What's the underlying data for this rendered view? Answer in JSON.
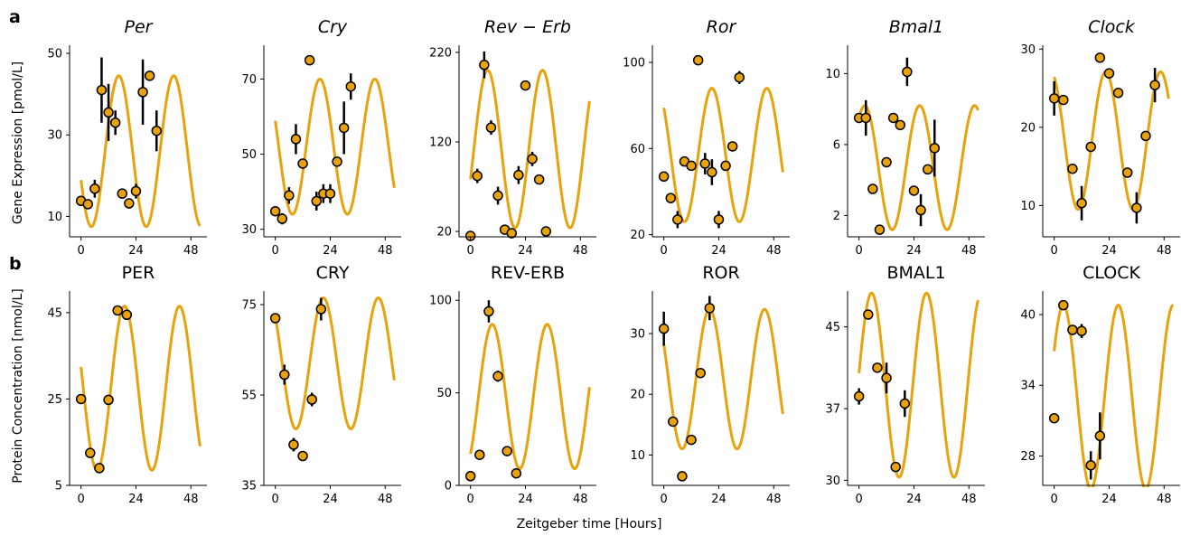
{
  "panel_labels": [
    "a",
    "b"
  ],
  "figure_xlabel": "Zeitgeber time [Hours]",
  "row_ylabels": [
    "Gene Expression [pmol/L]",
    "Protein Concentration [nmol/L]"
  ],
  "colors": {
    "model": "#E8A20C",
    "marker_face": "#E8A20C",
    "marker_edge": "#000000",
    "errorbar": "#000000",
    "axis": "#000000"
  },
  "chart_data": [
    {
      "type": "line",
      "row": 0,
      "title": "Per",
      "italic": true,
      "xlim": [
        -5,
        55
      ],
      "ylim": [
        5,
        52
      ],
      "xticks": [
        0,
        24,
        48
      ],
      "yticks": [
        10,
        30,
        50
      ],
      "model": {
        "x_max": 52,
        "mean": 26,
        "amp": 18.5,
        "phase": 16.5
      },
      "points": [
        {
          "x": 0,
          "y": 13.8,
          "err": 0
        },
        {
          "x": 3,
          "y": 13.0,
          "err": 0
        },
        {
          "x": 6,
          "y": 16.8,
          "err": 2.2
        },
        {
          "x": 9,
          "y": 41.0,
          "err": 8
        },
        {
          "x": 12,
          "y": 35.5,
          "err": 7
        },
        {
          "x": 15,
          "y": 33.0,
          "err": 3
        },
        {
          "x": 18,
          "y": 15.6,
          "err": 0
        },
        {
          "x": 21,
          "y": 13.2,
          "err": 0
        },
        {
          "x": 24,
          "y": 16.2,
          "err": 1.8
        },
        {
          "x": 27,
          "y": 40.5,
          "err": 8
        },
        {
          "x": 30,
          "y": 44.5,
          "err": 0
        },
        {
          "x": 33,
          "y": 31.0,
          "err": 5
        }
      ]
    },
    {
      "type": "line",
      "row": 0,
      "title": "Cry",
      "italic": true,
      "xlim": [
        -5,
        55
      ],
      "ylim": [
        28,
        79
      ],
      "xticks": [
        0,
        24,
        48
      ],
      "yticks": [
        30,
        50,
        70
      ],
      "model": {
        "x_max": 52,
        "mean": 52,
        "amp": 18,
        "phase": 19.5
      },
      "points": [
        {
          "x": 0,
          "y": 34.8,
          "err": 0
        },
        {
          "x": 3,
          "y": 32.8,
          "err": 1.5
        },
        {
          "x": 6,
          "y": 39.0,
          "err": 2.2
        },
        {
          "x": 9,
          "y": 54.0,
          "err": 4
        },
        {
          "x": 12,
          "y": 47.5,
          "err": 0
        },
        {
          "x": 15,
          "y": 75.0,
          "err": 0
        },
        {
          "x": 18,
          "y": 37.5,
          "err": 2.5
        },
        {
          "x": 21,
          "y": 39.5,
          "err": 2.5
        },
        {
          "x": 24,
          "y": 39.5,
          "err": 2.5
        },
        {
          "x": 27,
          "y": 48.0,
          "err": 0
        },
        {
          "x": 30,
          "y": 57.0,
          "err": 7
        },
        {
          "x": 33,
          "y": 68.0,
          "err": 3.5
        }
      ]
    },
    {
      "type": "line",
      "row": 0,
      "title": "Rev − Erb",
      "italic": true,
      "xlim": [
        -5,
        55
      ],
      "ylim": [
        14,
        228
      ],
      "xticks": [
        0,
        24,
        48
      ],
      "yticks": [
        20,
        120,
        220
      ],
      "model": {
        "x_max": 52,
        "mean": 112,
        "amp": 88,
        "phase": 7.5
      },
      "points": [
        {
          "x": 0,
          "y": 15,
          "err": 0
        },
        {
          "x": 3,
          "y": 82,
          "err": 8
        },
        {
          "x": 6,
          "y": 206,
          "err": 15
        },
        {
          "x": 9,
          "y": 136,
          "err": 8
        },
        {
          "x": 12,
          "y": 60,
          "err": 10
        },
        {
          "x": 15,
          "y": 22,
          "err": 0
        },
        {
          "x": 18,
          "y": 18,
          "err": 0
        },
        {
          "x": 21,
          "y": 83,
          "err": 10
        },
        {
          "x": 24,
          "y": 183,
          "err": 0
        },
        {
          "x": 27,
          "y": 101,
          "err": 8
        },
        {
          "x": 30,
          "y": 78,
          "err": 0
        },
        {
          "x": 33,
          "y": 20,
          "err": 0
        }
      ]
    },
    {
      "type": "line",
      "row": 0,
      "title": "Ror",
      "italic": true,
      "xlim": [
        -5,
        55
      ],
      "ylim": [
        19,
        108
      ],
      "xticks": [
        0,
        24,
        48
      ],
      "yticks": [
        20,
        60,
        100
      ],
      "model": {
        "x_max": 52,
        "mean": 57,
        "amp": 31,
        "phase": 21
      },
      "points": [
        {
          "x": 0,
          "y": 47,
          "err": 0
        },
        {
          "x": 3,
          "y": 37,
          "err": 0
        },
        {
          "x": 6,
          "y": 27,
          "err": 4
        },
        {
          "x": 9,
          "y": 54,
          "err": 0
        },
        {
          "x": 12,
          "y": 52,
          "err": 0
        },
        {
          "x": 15,
          "y": 101,
          "err": 0
        },
        {
          "x": 18,
          "y": 53,
          "err": 5
        },
        {
          "x": 21,
          "y": 49,
          "err": 6
        },
        {
          "x": 24,
          "y": 27,
          "err": 4
        },
        {
          "x": 27,
          "y": 52,
          "err": 0
        },
        {
          "x": 30,
          "y": 61,
          "err": 0
        },
        {
          "x": 33,
          "y": 93,
          "err": 3
        }
      ]
    },
    {
      "type": "line",
      "row": 0,
      "title": "Bmal1",
      "italic": true,
      "xlim": [
        -5,
        55
      ],
      "ylim": [
        0.8,
        11.6
      ],
      "xticks": [
        0,
        24,
        48
      ],
      "yticks": [
        2,
        6,
        10
      ],
      "model": {
        "x_max": 52,
        "mean": 4.7,
        "amp": 3.5,
        "phase": 2.5
      },
      "points": [
        {
          "x": 0,
          "y": 7.5,
          "err": 0
        },
        {
          "x": 3,
          "y": 7.5,
          "err": 1
        },
        {
          "x": 6,
          "y": 3.5,
          "err": 0
        },
        {
          "x": 9,
          "y": 1.2,
          "err": 0
        },
        {
          "x": 12,
          "y": 5.0,
          "err": 0
        },
        {
          "x": 15,
          "y": 7.5,
          "err": 0
        },
        {
          "x": 18,
          "y": 7.1,
          "err": 0
        },
        {
          "x": 21,
          "y": 10.1,
          "err": 0.8
        },
        {
          "x": 24,
          "y": 3.4,
          "err": 0
        },
        {
          "x": 27,
          "y": 2.3,
          "err": 0.9
        },
        {
          "x": 30,
          "y": 4.6,
          "err": 0
        },
        {
          "x": 33,
          "y": 5.8,
          "err": 1.6
        }
      ]
    },
    {
      "type": "line",
      "row": 0,
      "title": "Clock",
      "italic": true,
      "xlim": [
        -5,
        55
      ],
      "ylim": [
        6,
        30.5
      ],
      "xticks": [
        0,
        24,
        48
      ],
      "yticks": [
        10,
        20,
        30
      ],
      "model": {
        "x_max": 50,
        "mean": 18.3,
        "amp": 8.8,
        "phase": 22.5
      },
      "points": [
        {
          "x": 0,
          "y": 23.7,
          "err": 2.2
        },
        {
          "x": 4,
          "y": 23.5,
          "err": 0
        },
        {
          "x": 8,
          "y": 14.7,
          "err": 0
        },
        {
          "x": 12,
          "y": 10.3,
          "err": 2.2
        },
        {
          "x": 16,
          "y": 17.5,
          "err": 0
        },
        {
          "x": 20,
          "y": 28.9,
          "err": 0
        },
        {
          "x": 24,
          "y": 26.9,
          "err": 0
        },
        {
          "x": 28,
          "y": 24.4,
          "err": 0
        },
        {
          "x": 32,
          "y": 14.2,
          "err": 0
        },
        {
          "x": 36,
          "y": 9.7,
          "err": 2
        },
        {
          "x": 40,
          "y": 18.9,
          "err": 0
        },
        {
          "x": 44,
          "y": 25.4,
          "err": 2.2
        }
      ]
    },
    {
      "type": "line",
      "row": 1,
      "title": "PER",
      "italic": false,
      "xlim": [
        -5,
        55
      ],
      "ylim": [
        5,
        50
      ],
      "xticks": [
        0,
        24,
        48
      ],
      "yticks": [
        5,
        25,
        45
      ],
      "model": {
        "x_max": 52,
        "mean": 27.5,
        "amp": 19,
        "phase": 19
      },
      "points": [
        {
          "x": 0,
          "y": 25,
          "err": 0
        },
        {
          "x": 4,
          "y": 12.5,
          "err": 0
        },
        {
          "x": 8,
          "y": 9,
          "err": 0
        },
        {
          "x": 12,
          "y": 24.8,
          "err": 0
        },
        {
          "x": 16,
          "y": 45.5,
          "err": 0
        },
        {
          "x": 20,
          "y": 44.5,
          "err": 0
        }
      ]
    },
    {
      "type": "line",
      "row": 1,
      "title": "CRY",
      "italic": false,
      "xlim": [
        -5,
        55
      ],
      "ylim": [
        35,
        78
      ],
      "xticks": [
        0,
        24,
        48
      ],
      "yticks": [
        35,
        55,
        75
      ],
      "model": {
        "x_max": 52,
        "mean": 62,
        "amp": 14.5,
        "phase": 21
      },
      "points": [
        {
          "x": 0,
          "y": 72,
          "err": 0
        },
        {
          "x": 4,
          "y": 59.5,
          "err": 2.2
        },
        {
          "x": 8,
          "y": 44,
          "err": 1.5
        },
        {
          "x": 12,
          "y": 41.5,
          "err": 0
        },
        {
          "x": 16,
          "y": 54,
          "err": 1.5
        },
        {
          "x": 20,
          "y": 74,
          "err": 2.5
        }
      ]
    },
    {
      "type": "line",
      "row": 1,
      "title": "REV-ERB",
      "italic": false,
      "xlim": [
        -5,
        55
      ],
      "ylim": [
        0,
        105
      ],
      "xticks": [
        0,
        24,
        48
      ],
      "yticks": [
        0,
        50,
        100
      ],
      "model": {
        "x_max": 52,
        "mean": 48,
        "amp": 39,
        "phase": 9.5
      },
      "points": [
        {
          "x": 0,
          "y": 5,
          "err": 0
        },
        {
          "x": 4,
          "y": 16.5,
          "err": 0
        },
        {
          "x": 8,
          "y": 94,
          "err": 6
        },
        {
          "x": 12,
          "y": 59,
          "err": 3
        },
        {
          "x": 16,
          "y": 18.5,
          "err": 0
        },
        {
          "x": 20,
          "y": 6.5,
          "err": 0
        }
      ]
    },
    {
      "type": "line",
      "row": 1,
      "title": "ROR",
      "italic": false,
      "xlim": [
        -5,
        55
      ],
      "ylim": [
        5,
        37
      ],
      "xticks": [
        0,
        24,
        48
      ],
      "yticks": [
        10,
        20,
        30
      ],
      "model": {
        "x_max": 52,
        "mean": 22.5,
        "amp": 11.5,
        "phase": 20
      },
      "points": [
        {
          "x": 0,
          "y": 30.8,
          "err": 2.8
        },
        {
          "x": 4,
          "y": 15.5,
          "err": 0
        },
        {
          "x": 8,
          "y": 6.5,
          "err": 0
        },
        {
          "x": 12,
          "y": 12.5,
          "err": 0
        },
        {
          "x": 16,
          "y": 23.5,
          "err": 0
        },
        {
          "x": 20,
          "y": 34.2,
          "err": 2
        }
      ]
    },
    {
      "type": "line",
      "row": 1,
      "title": "BMAL1",
      "italic": false,
      "xlim": [
        -5,
        55
      ],
      "ylim": [
        29.5,
        48.5
      ],
      "xticks": [
        0,
        24,
        48
      ],
      "yticks": [
        30,
        37,
        45
      ],
      "model": {
        "x_max": 52,
        "mean": 39.3,
        "amp": 9,
        "phase": 5.5
      },
      "points": [
        {
          "x": 0,
          "y": 38.2,
          "err": 0.8
        },
        {
          "x": 4,
          "y": 46.2,
          "err": 0
        },
        {
          "x": 8,
          "y": 41,
          "err": 0
        },
        {
          "x": 12,
          "y": 40,
          "err": 1.5
        },
        {
          "x": 16,
          "y": 31.3,
          "err": 0
        },
        {
          "x": 20,
          "y": 37.5,
          "err": 1.3
        }
      ]
    },
    {
      "type": "line",
      "row": 1,
      "title": "CLOCK",
      "italic": false,
      "xlim": [
        -5,
        55
      ],
      "ylim": [
        25.5,
        42
      ],
      "xticks": [
        0,
        24,
        48
      ],
      "yticks": [
        28,
        34,
        40
      ],
      "model": {
        "x_max": 52,
        "mean": 33,
        "amp": 7.8,
        "phase": 28
      },
      "points": [
        {
          "x": 0,
          "y": 31.2,
          "err": 0
        },
        {
          "x": 4,
          "y": 40.8,
          "err": 0
        },
        {
          "x": 8,
          "y": 38.7,
          "err": 0
        },
        {
          "x": 12,
          "y": 38.6,
          "err": 0.6
        },
        {
          "x": 16,
          "y": 27.2,
          "err": 1.2
        },
        {
          "x": 20,
          "y": 29.7,
          "err": 2
        }
      ]
    }
  ]
}
